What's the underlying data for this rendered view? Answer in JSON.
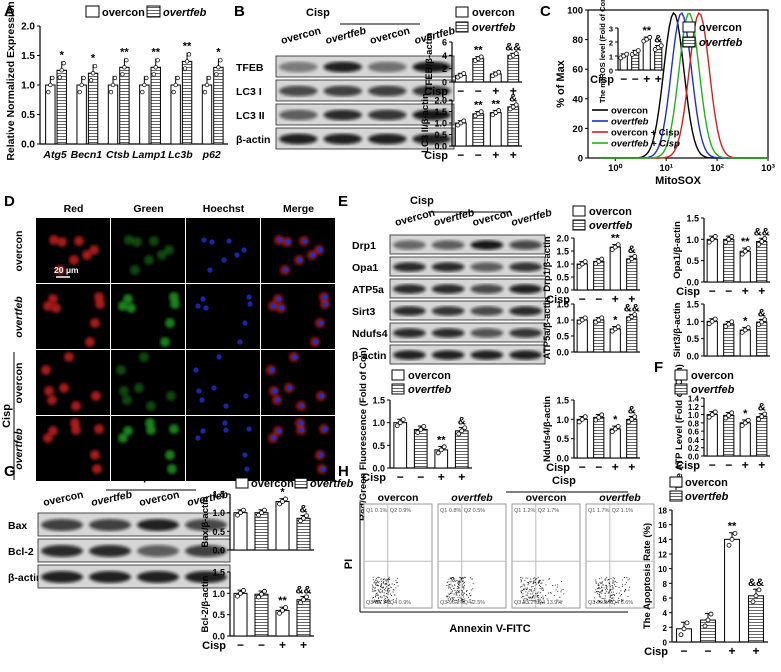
{
  "panels": {
    "A": {
      "label": "A"
    },
    "B": {
      "label": "B"
    },
    "C": {
      "label": "C"
    },
    "D": {
      "label": "D"
    },
    "E": {
      "label": "E"
    },
    "F": {
      "label": "F"
    },
    "G": {
      "label": "G"
    },
    "H": {
      "label": "H"
    }
  },
  "legend": {
    "overcon": "overcon",
    "overtfeb": "overtfeb"
  },
  "treatment": {
    "cisp": "Cisp",
    "minus": "−",
    "plus": "+"
  },
  "colors": {
    "dot": "#ffffff",
    "bar_fill": "#ffffff",
    "hatch": "#555555",
    "blot_band": "#1a1a1a",
    "blot_bg": "#d8d8d8"
  },
  "blots": {
    "B": {
      "rows": [
        "TFEB",
        "LC3 I",
        "LC3 II",
        "β-actin"
      ],
      "lanes": [
        "overcon",
        "overtfeb",
        "overcon",
        "overtfeb"
      ]
    },
    "E": {
      "rows": [
        "Drp1",
        "Opa1",
        "ATP5a",
        "Sirt3",
        "Ndufs4",
        "β-actin"
      ],
      "lanes": [
        "overcon",
        "overtfeb",
        "overcon",
        "overtfeb"
      ]
    },
    "G": {
      "rows": [
        "Bax",
        "Bcl-2",
        "β-actin"
      ],
      "lanes": [
        "overcon",
        "overtfeb",
        "overcon",
        "overtfeb"
      ]
    }
  },
  "microscopy": {
    "columns": [
      "Red",
      "Green",
      "Hoechst",
      "Merge"
    ],
    "rows": [
      "overcon",
      "overtfeb",
      "overcon",
      "overtfeb"
    ],
    "scale_bar": "20 μm",
    "colors": {
      "red": "#d02020",
      "green": "#20a020",
      "blue": "#2030d0"
    }
  },
  "flow": {
    "x_label": "Annexin V-FITC",
    "y_label": "PI",
    "plots": [
      {
        "title": "overcon",
        "q": [
          "0.1%",
          "0.9%",
          "98.1%",
          "0.9%"
        ]
      },
      {
        "title": "overtfeb",
        "q": [
          "0.8%",
          "0.5%",
          "96.2%",
          "2.5%"
        ]
      },
      {
        "title": "overcon",
        "q": [
          "1.2%",
          "1.7%",
          "83.2%",
          "13.9%"
        ]
      },
      {
        "title": "overtfeb",
        "q": [
          "1.7%",
          "1.1%",
          "90.6%",
          "6.6%"
        ]
      }
    ],
    "quadrant_labels": [
      "Q1",
      "Q2",
      "Q3",
      "Q4"
    ]
  },
  "chart_data": [
    {
      "id": "A",
      "type": "bar",
      "ylabel": "Relative Normalized Expression",
      "categories": [
        "Atg5",
        "Becn1",
        "Ctsb",
        "Lamp1",
        "Lc3b",
        "p62"
      ],
      "series": [
        {
          "name": "overcon",
          "values": [
            1.0,
            1.0,
            1.0,
            1.0,
            1.0,
            1.0
          ]
        },
        {
          "name": "overtfeb",
          "values": [
            1.25,
            1.2,
            1.3,
            1.3,
            1.4,
            1.3
          ]
        }
      ],
      "ylim": [
        0,
        2.0
      ],
      "yticks": [
        "0.0",
        "0.5",
        "1.0",
        "1.5",
        "2.0"
      ],
      "annotations": [
        "*",
        "*",
        "**",
        "**",
        "**",
        "*"
      ]
    },
    {
      "id": "B1",
      "type": "bar",
      "ylabel": "TFEB/β-actin",
      "values": [
        1.0,
        3.5,
        1.2,
        4.0
      ],
      "ylim": [
        0,
        6
      ],
      "yticks": [
        "0",
        "2",
        "4",
        "6"
      ],
      "annotations": [
        "",
        "**",
        "",
        "&&"
      ]
    },
    {
      "id": "B2",
      "type": "bar",
      "ylabel": "LC3 II/β-actin",
      "values": [
        1.0,
        1.4,
        1.45,
        1.7
      ],
      "ylim": [
        0,
        2.0
      ],
      "yticks": [
        "0.0",
        "0.5",
        "1.0",
        "1.5",
        "2.0"
      ],
      "annotations": [
        "",
        "**",
        "**",
        "&"
      ]
    },
    {
      "id": "Cinset",
      "type": "bar",
      "ylabel": "The mtROS level (Fold of Con)",
      "values": [
        1.0,
        1.25,
        2.2,
        1.6
      ],
      "ylim": [
        0,
        3
      ],
      "yticks": [
        "0",
        "1",
        "2",
        "3"
      ],
      "annotations": [
        "",
        "",
        "**",
        "&"
      ]
    },
    {
      "id": "C",
      "type": "line",
      "xlabel": "MitoSOX",
      "ylabel": "% of Max",
      "ylim": [
        0,
        100
      ],
      "yticks": [
        "0",
        "20",
        "40",
        "60",
        "80",
        "100"
      ],
      "xticks": [
        "10⁰",
        "10¹",
        "10²",
        "10³"
      ],
      "series": [
        {
          "name": "overcon",
          "color": "#000000",
          "peak_log": 1.15
        },
        {
          "name": "overtfeb",
          "color": "#2030c0",
          "peak_log": 1.3
        },
        {
          "name": "overcon + Cisp",
          "color": "#d02020",
          "peak_log": 1.65
        },
        {
          "name": "overtfeb + Cisp",
          "color": "#20b020",
          "peak_log": 1.45
        }
      ],
      "overlay_legend": [
        "overcon",
        "overtfeb"
      ]
    },
    {
      "id": "Eratio",
      "type": "bar",
      "ylabel": "Red/Green Fluorescence (Fold of Con)",
      "values": [
        1.0,
        0.85,
        0.4,
        0.82
      ],
      "ylim": [
        0,
        1.5
      ],
      "yticks": [
        "0.0",
        "0.5",
        "1.0",
        "1.5"
      ],
      "annotations": [
        "",
        "",
        "**",
        "&"
      ]
    },
    {
      "id": "Drp1",
      "type": "bar",
      "ylabel": "Drp1/β-actin",
      "values": [
        1.0,
        1.1,
        1.65,
        1.2
      ],
      "ylim": [
        0,
        2.0
      ],
      "yticks": [
        "0.0",
        "0.5",
        "1.0",
        "1.5",
        "2.0"
      ],
      "annotations": [
        "",
        "",
        "**",
        "&"
      ]
    },
    {
      "id": "Opa1",
      "type": "bar",
      "ylabel": "Opa1/β-actin",
      "values": [
        1.0,
        1.0,
        0.72,
        0.95
      ],
      "ylim": [
        0,
        1.5
      ],
      "yticks": [
        "0.0",
        "0.5",
        "1.0",
        "1.5"
      ],
      "annotations": [
        "",
        "",
        "**",
        "&&"
      ]
    },
    {
      "id": "ATP5a",
      "type": "bar",
      "ylabel": "ATP5a/β-actin",
      "values": [
        1.0,
        1.0,
        0.72,
        1.1
      ],
      "ylim": [
        0,
        1.5
      ],
      "yticks": [
        "0.0",
        "0.5",
        "1.0",
        "1.5"
      ],
      "annotations": [
        "",
        "",
        "*",
        "&&"
      ]
    },
    {
      "id": "Sirt3",
      "type": "bar",
      "ylabel": "Sirt3/β-actin",
      "values": [
        1.0,
        0.92,
        0.75,
        0.98
      ],
      "ylim": [
        0,
        1.5
      ],
      "yticks": [
        "0.0",
        "0.5",
        "1.0",
        "1.5"
      ],
      "annotations": [
        "",
        "",
        "*",
        "&"
      ]
    },
    {
      "id": "Ndufs4",
      "type": "bar",
      "ylabel": "Ndufs4/β-actin",
      "values": [
        1.0,
        1.05,
        0.75,
        1.0
      ],
      "ylim": [
        0,
        1.5
      ],
      "yticks": [
        "0.0",
        "0.5",
        "1.0",
        "1.5"
      ],
      "annotations": [
        "",
        "",
        "*",
        "&"
      ]
    },
    {
      "id": "F",
      "type": "bar",
      "ylabel": "The ATP Level (Fold of Con)",
      "values": [
        1.0,
        0.98,
        0.8,
        0.95
      ],
      "ylim": [
        0,
        1.4
      ],
      "yticks": [
        "0.0",
        "0.2",
        "0.4",
        "0.6",
        "0.8",
        "1.0",
        "1.2",
        "1.4"
      ],
      "annotations": [
        "",
        "",
        "*",
        "&"
      ]
    },
    {
      "id": "Bax",
      "type": "bar",
      "ylabel": "Bax/β-actin",
      "values": [
        1.0,
        1.0,
        1.3,
        0.85
      ],
      "ylim": [
        0,
        1.5
      ],
      "yticks": [
        "0.0",
        "0.5",
        "1.0",
        "1.5"
      ],
      "annotations": [
        "",
        "",
        "*",
        "&"
      ]
    },
    {
      "id": "Bcl2",
      "type": "bar",
      "ylabel": "Bcl-2/β-actin",
      "values": [
        1.0,
        0.98,
        0.6,
        0.85
      ],
      "ylim": [
        0,
        1.5
      ],
      "yticks": [
        "0.0",
        "0.5",
        "1.0",
        "1.5"
      ],
      "annotations": [
        "",
        "",
        "**",
        "&&"
      ]
    },
    {
      "id": "Happ",
      "type": "bar",
      "ylabel": "The Apoptosis Rate (%)",
      "values": [
        1.8,
        3.0,
        14.0,
        6.3
      ],
      "ylim": [
        0,
        18
      ],
      "yticks": [
        "0",
        "2",
        "4",
        "6",
        "8",
        "10",
        "12",
        "14",
        "16",
        "18"
      ],
      "annotations": [
        "",
        "",
        "**",
        "&&"
      ]
    }
  ]
}
